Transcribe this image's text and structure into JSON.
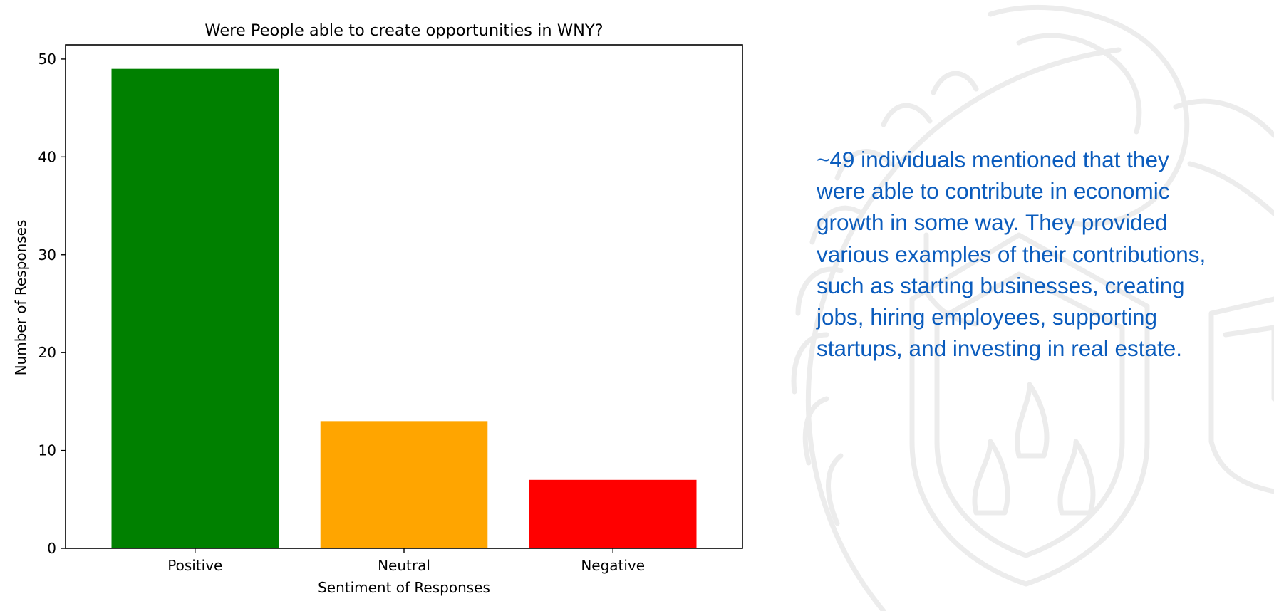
{
  "chart_data": {
    "type": "bar",
    "title": "Were People able to create opportunities in WNY?",
    "xlabel": "Sentiment of Responses",
    "ylabel": "Number of Responses",
    "categories": [
      "Positive",
      "Neutral",
      "Negative"
    ],
    "values": [
      49,
      13,
      7
    ],
    "colors": [
      "#008000",
      "#FFA500",
      "#FF0000"
    ],
    "ylim": [
      0,
      51.45
    ],
    "yticks": [
      0,
      10,
      20,
      30,
      40,
      50
    ],
    "grid": false,
    "legend": "none"
  },
  "summary": {
    "text": "~49 individuals mentioned that they were able to contribute in economic growth in some way. They provided various examples of their contributions, such as starting businesses, creating jobs, hiring employees, supporting startups, and investing in real estate."
  },
  "colors": {
    "summary_text": "#0b5cbd",
    "watermark": "#ececec"
  },
  "icons": {
    "watermark": "university-seal-watermark-icon"
  }
}
